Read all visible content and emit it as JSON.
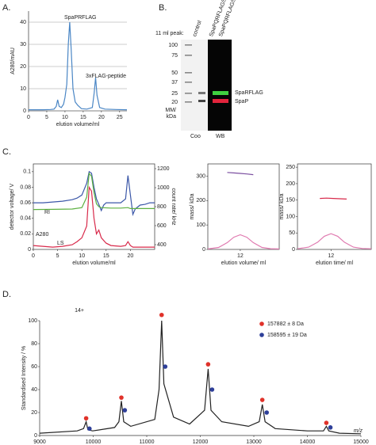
{
  "chart_data": [
    {
      "type": "line",
      "panel_label": "A.",
      "frame": "axes",
      "grid": true,
      "xlim": [
        0,
        27
      ],
      "xticks": [
        0,
        5,
        10,
        15,
        20,
        25
      ],
      "ylim": [
        0,
        45
      ],
      "yticks": [
        0,
        10,
        20,
        30,
        40
      ],
      "x_label": "elution volume/ml",
      "y_label": "A280/mAU",
      "annotations": [
        "SpaPRFLAG",
        "3xFLAG-peptide"
      ],
      "series": [
        {
          "color": "#4a86c5",
          "x": [
            0,
            2,
            4,
            6,
            7,
            7.6,
            8,
            8.4,
            9,
            9.6,
            10,
            10.5,
            10.9,
            11.3,
            11.7,
            12.2,
            12.8,
            13.5,
            14.5,
            16,
            17.5,
            18,
            18.4,
            18.8,
            19.5,
            21,
            24,
            27
          ],
          "values": [
            0.5,
            0.5,
            0.5,
            0.6,
            0.8,
            2,
            5,
            2,
            1.5,
            3,
            6,
            12,
            30,
            40,
            28,
            10,
            4,
            2.5,
            1,
            0.8,
            1.5,
            8,
            15,
            7,
            1.5,
            0.8,
            0.6,
            0.5
          ]
        }
      ]
    },
    {
      "type": "line",
      "panel_label": "C.",
      "frame": "box",
      "grid": false,
      "xlim": [
        0,
        25
      ],
      "xticks": [
        0,
        5,
        10,
        15,
        20
      ],
      "ylim": [
        0,
        0.11
      ],
      "yticks": [
        0,
        0.02,
        0.04,
        0.06,
        0.08,
        0.1
      ],
      "y2lim": [
        350,
        1250
      ],
      "y2ticks": [
        400,
        600,
        800,
        1000,
        1200
      ],
      "x_label": "elution volume/ml",
      "y_label": "detector voltage/ V",
      "y2_label": "count rate/ kHz",
      "annotations": [],
      "series": [
        {
          "name": "RI",
          "color": "#3b57a8",
          "x": [
            0,
            2,
            4,
            6,
            8,
            9,
            10,
            11,
            11.5,
            12,
            12.5,
            13,
            13.5,
            14,
            14.5,
            15,
            16,
            17,
            18,
            19,
            19.5,
            20,
            20.5,
            21,
            22,
            23,
            24,
            25
          ],
          "values": [
            0.06,
            0.06,
            0.061,
            0.062,
            0.064,
            0.066,
            0.07,
            0.085,
            0.1,
            0.098,
            0.08,
            0.065,
            0.058,
            0.05,
            0.057,
            0.06,
            0.06,
            0.06,
            0.06,
            0.065,
            0.095,
            0.07,
            0.045,
            0.052,
            0.057,
            0.058,
            0.06,
            0.06
          ]
        },
        {
          "name": "A280",
          "color": "#d8294a",
          "x": [
            0,
            2,
            4,
            6,
            8,
            9,
            10,
            11,
            11.5,
            12,
            12.5,
            13,
            13.5,
            14,
            15,
            16,
            18,
            19,
            19.5,
            20,
            20.5,
            21,
            23,
            25
          ],
          "values": [
            0.005,
            0.004,
            0.003,
            0.004,
            0.006,
            0.01,
            0.015,
            0.03,
            0.08,
            0.075,
            0.04,
            0.02,
            0.025,
            0.015,
            0.008,
            0.005,
            0.004,
            0.005,
            0.01,
            0.005,
            0.003,
            0.003,
            0.003,
            0.003
          ]
        },
        {
          "name": "LS",
          "color": "#5cb040",
          "axis": "y2",
          "x": [
            0,
            4,
            8,
            10,
            11,
            11.5,
            12,
            12.5,
            13,
            13.5,
            14,
            16,
            18,
            19.5,
            20,
            21,
            25
          ],
          "values": [
            770,
            772,
            775,
            790,
            900,
            1150,
            1120,
            950,
            830,
            800,
            790,
            785,
            785,
            790,
            780,
            780,
            780
          ]
        }
      ]
    },
    {
      "type": "line",
      "frame": "box",
      "grid": false,
      "xlim": [
        10.5,
        13.8
      ],
      "xticks": [
        12
      ],
      "ylim": [
        0,
        350
      ],
      "yticks": [
        0,
        100,
        200,
        300
      ],
      "x_label": "elution volume/ ml",
      "y_label": "mass/ kDa",
      "annotations": [],
      "series": [
        {
          "color": "#7b4fa0",
          "x": [
            11.4,
            11.7,
            12.0,
            12.3,
            12.6
          ],
          "values": [
            315,
            313,
            311,
            309,
            306
          ]
        },
        {
          "color": "#e07ab0",
          "x": [
            10.5,
            11,
            11.4,
            11.7,
            12,
            12.3,
            12.6,
            13,
            13.4,
            13.8
          ],
          "values": [
            2,
            8,
            28,
            50,
            60,
            50,
            28,
            8,
            3,
            2
          ]
        }
      ]
    },
    {
      "type": "line",
      "frame": "box",
      "grid": false,
      "xlim": [
        10.5,
        13.8
      ],
      "xticks": [
        12
      ],
      "ylim": [
        0,
        260
      ],
      "yticks": [
        0,
        50,
        100,
        150,
        200,
        250
      ],
      "x_label": "elution time/ ml",
      "y_label": "mass/ kDa",
      "annotations": [],
      "series": [
        {
          "color": "#d8294a",
          "x": [
            11.5,
            11.8,
            12.1,
            12.4,
            12.7
          ],
          "values": [
            155,
            156,
            155,
            154,
            153
          ]
        },
        {
          "color": "#e07ab0",
          "x": [
            10.5,
            11,
            11.4,
            11.7,
            12,
            12.3,
            12.6,
            13,
            13.4,
            13.8
          ],
          "values": [
            2,
            7,
            22,
            40,
            48,
            40,
            22,
            7,
            3,
            2
          ]
        }
      ]
    },
    {
      "type": "line",
      "panel_label": "D.",
      "frame": "axes",
      "grid": false,
      "xlim": [
        9000,
        15000
      ],
      "xticks": [
        9000,
        10000,
        11000,
        12000,
        13000,
        14000,
        15000
      ],
      "ylim": [
        0,
        100
      ],
      "yticks": [
        0,
        20,
        40,
        60,
        80,
        100
      ],
      "x_label": "m/z",
      "y_label": "Standardised Intensity / %",
      "annotations": [
        "14+"
      ],
      "series": [
        {
          "color": "#222222",
          "x": [
            9000,
            9700,
            9820,
            9868,
            9900,
            9990,
            10400,
            10480,
            10526,
            10570,
            10700,
            11150,
            11230,
            11278,
            11320,
            11500,
            11800,
            12080,
            12146,
            12200,
            12400,
            12900,
            13100,
            13158,
            13210,
            13400,
            14000,
            14300,
            14354,
            14400,
            14600,
            15000
          ],
          "values": [
            2,
            4,
            6,
            12,
            5,
            4,
            7,
            12,
            30,
            12,
            8,
            14,
            40,
            100,
            45,
            16,
            10,
            22,
            58,
            22,
            12,
            8,
            12,
            27,
            12,
            6,
            4,
            4,
            8,
            4,
            2,
            1.5
          ]
        },
        {
          "name": "157882 ± 8 Da",
          "color": "#e0322a",
          "mode": "markers",
          "x": [
            9868,
            10526,
            11278,
            12146,
            13158,
            14354
          ],
          "values": [
            15,
            33,
            105,
            62,
            31,
            11
          ]
        },
        {
          "name": "158595 ± 19 Da",
          "color": "#2e3f99",
          "mode": "markers",
          "x": [
            9930,
            10590,
            11345,
            12220,
            13240,
            14430
          ],
          "values": [
            6,
            22,
            60,
            40,
            20,
            7
          ]
        }
      ]
    }
  ],
  "gel": {
    "panel_label": "B.",
    "peak_label": "11 ml peak:",
    "lanes": [
      "control",
      "SpaPQRFLAGS",
      "SpaPQRFLAGS"
    ],
    "ladder": [
      "100",
      "75",
      "50",
      "37",
      "25",
      "20"
    ],
    "mm_label": [
      "MM/",
      "kDa"
    ],
    "stain_labels": [
      "Coo",
      "WB"
    ],
    "bands": [
      "SpaRFLAG",
      "SpaP"
    ]
  }
}
